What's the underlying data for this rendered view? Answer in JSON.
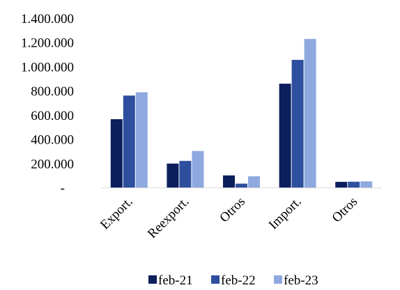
{
  "chart_data": {
    "type": "bar",
    "categories": [
      "Export.",
      "Reexport.",
      "Otros",
      "Import.",
      "Otros"
    ],
    "series": [
      {
        "name": "feb-21",
        "color": "#0B1F5C",
        "values": [
          565000,
          198000,
          100000,
          858000,
          47000
        ]
      },
      {
        "name": "feb-22",
        "color": "#2E4F9E",
        "values": [
          760000,
          220000,
          32000,
          1055000,
          48000
        ]
      },
      {
        "name": "feb-23",
        "color": "#8FA9E0",
        "values": [
          787000,
          302000,
          93000,
          1228000,
          51000
        ]
      }
    ],
    "ylim": [
      0,
      1400000
    ],
    "y_ticks": [
      {
        "value": 0,
        "label": "-"
      },
      {
        "value": 200000,
        "label": "200.000"
      },
      {
        "value": 400000,
        "label": "400.000"
      },
      {
        "value": 600000,
        "label": "600.000"
      },
      {
        "value": 800000,
        "label": "800.000"
      },
      {
        "value": 1000000,
        "label": "1.000.000"
      },
      {
        "value": 1200000,
        "label": "1.200.000"
      },
      {
        "value": 1400000,
        "label": "1.400.000"
      }
    ],
    "grid": false,
    "legend_position": "bottom",
    "title": "",
    "xlabel": "",
    "ylabel": ""
  }
}
